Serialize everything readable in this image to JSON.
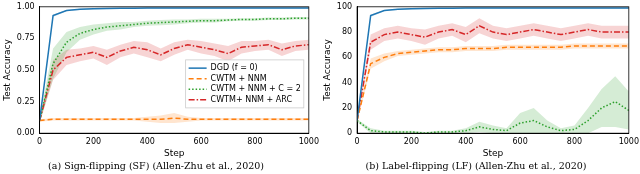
{
  "chart_data": [
    {
      "type": "line",
      "title": "(a) Sign-flipping (SF) (Allen-Zhu et al., 2020)",
      "x_label": "Step",
      "y_label": "Test Accuracy",
      "x": [
        0,
        50,
        100,
        150,
        200,
        250,
        300,
        350,
        400,
        450,
        500,
        550,
        600,
        650,
        700,
        750,
        800,
        850,
        900,
        950,
        1000
      ],
      "xlim": [
        0,
        1000
      ],
      "xticks": [
        0,
        200,
        400,
        600,
        800,
        1000
      ],
      "ylim": [
        0,
        1
      ],
      "yticks": [
        {
          "value": 0,
          "label": "0.00"
        },
        {
          "value": 0.25,
          "label": "0.25"
        },
        {
          "value": 0.5,
          "label": "0.50"
        },
        {
          "value": 0.75,
          "label": "0.75"
        },
        {
          "value": 1,
          "label": "1.00"
        }
      ],
      "grid": false,
      "legend": "center right",
      "series": [
        {
          "name": "DGD (f = 0)",
          "color": "#1f77b4",
          "line_style": "solid",
          "values": [
            0.1,
            0.93,
            0.97,
            0.98,
            0.985,
            0.987,
            0.988,
            0.989,
            0.99,
            0.99,
            0.99,
            0.99,
            0.99,
            0.99,
            0.99,
            0.99,
            0.99,
            0.99,
            0.99,
            0.99,
            0.99
          ],
          "std": [
            0.01,
            0.01,
            0.005,
            0.005,
            0.005,
            0.005,
            0.005,
            0.005,
            0.005,
            0.005,
            0.005,
            0.005,
            0.005,
            0.005,
            0.005,
            0.005,
            0.005,
            0.005,
            0.005,
            0.005,
            0.005
          ]
        },
        {
          "name": "CWTM + NNM",
          "color": "#ff7f0e",
          "line_style": "dashed",
          "values": [
            0.1,
            0.11,
            0.11,
            0.11,
            0.11,
            0.11,
            0.11,
            0.11,
            0.11,
            0.11,
            0.12,
            0.11,
            0.11,
            0.11,
            0.11,
            0.11,
            0.11,
            0.11,
            0.11,
            0.11,
            0.11
          ],
          "std": [
            0.01,
            0.01,
            0.01,
            0.01,
            0.01,
            0.01,
            0.01,
            0.01,
            0.02,
            0.03,
            0.04,
            0.02,
            0.01,
            0.01,
            0.01,
            0.01,
            0.01,
            0.01,
            0.01,
            0.01,
            0.01
          ]
        },
        {
          "name": "CWTM + NNM + C = 2",
          "color": "#2ca02c",
          "line_style": "dotted",
          "values": [
            0.1,
            0.55,
            0.72,
            0.79,
            0.82,
            0.84,
            0.85,
            0.86,
            0.87,
            0.875,
            0.88,
            0.885,
            0.89,
            0.89,
            0.895,
            0.9,
            0.9,
            0.905,
            0.905,
            0.91,
            0.91
          ],
          "std": [
            0.02,
            0.12,
            0.08,
            0.05,
            0.04,
            0.03,
            0.03,
            0.02,
            0.02,
            0.02,
            0.02,
            0.015,
            0.015,
            0.015,
            0.01,
            0.01,
            0.01,
            0.01,
            0.01,
            0.01,
            0.01
          ]
        },
        {
          "name": "CWTM+ NNM + ARC",
          "color": "#d62728",
          "line_style": "dashdot",
          "values": [
            0.1,
            0.5,
            0.6,
            0.62,
            0.64,
            0.6,
            0.65,
            0.68,
            0.66,
            0.62,
            0.67,
            0.7,
            0.68,
            0.66,
            0.63,
            0.68,
            0.69,
            0.7,
            0.66,
            0.69,
            0.7
          ],
          "std": [
            0.02,
            0.08,
            0.06,
            0.05,
            0.05,
            0.06,
            0.05,
            0.05,
            0.06,
            0.05,
            0.05,
            0.04,
            0.05,
            0.05,
            0.06,
            0.05,
            0.04,
            0.04,
            0.05,
            0.04,
            0.04
          ]
        }
      ]
    },
    {
      "type": "line",
      "title": "(b) Label-flipping (LF) (Allen-Zhu et al., 2020)",
      "x_label": "Step",
      "y_label": "Test Accuracy",
      "x": [
        0,
        50,
        100,
        150,
        200,
        250,
        300,
        350,
        400,
        450,
        500,
        550,
        600,
        650,
        700,
        750,
        800,
        850,
        900,
        950,
        1000
      ],
      "xlim": [
        0,
        1000
      ],
      "xticks": [
        0,
        200,
        400,
        600,
        800,
        1000
      ],
      "ylim": [
        0,
        100
      ],
      "yticks": [
        0,
        20,
        40,
        60,
        80,
        100
      ],
      "grid": false,
      "series": [
        {
          "name": "DGD (f = 0)",
          "color": "#1f77b4",
          "line_style": "solid",
          "values": [
            10,
            93,
            97,
            98,
            98.5,
            98.7,
            98.8,
            98.9,
            99,
            99,
            99,
            99,
            99,
            99,
            99,
            99,
            99,
            99,
            99,
            99,
            99
          ],
          "std": [
            1,
            1,
            0.5,
            0.5,
            0.5,
            0.5,
            0.5,
            0.5,
            0.5,
            0.5,
            0.5,
            0.5,
            0.5,
            0.5,
            0.5,
            0.5,
            0.5,
            0.5,
            0.5,
            0.5,
            0.5
          ]
        },
        {
          "name": "CWTM + NNM",
          "color": "#ff7f0e",
          "line_style": "dashed",
          "values": [
            10,
            55,
            60,
            63,
            64,
            65,
            66,
            66,
            67,
            67,
            67,
            68,
            68,
            68,
            68,
            68,
            69,
            69,
            69,
            69,
            69
          ],
          "std": [
            1,
            4,
            3,
            2,
            2,
            2,
            2,
            2,
            2,
            2,
            2,
            2,
            2,
            2,
            2,
            2,
            2,
            2,
            2,
            2,
            2
          ]
        },
        {
          "name": "CWTM + NNM + C = 2",
          "color": "#2ca02c",
          "line_style": "dotted",
          "values": [
            10,
            2,
            1,
            1,
            1,
            0,
            1,
            1,
            2,
            5,
            3,
            2,
            8,
            10,
            5,
            2,
            3,
            10,
            20,
            25,
            18
          ],
          "std": [
            1,
            2,
            1,
            1,
            1,
            1,
            1,
            1,
            2,
            4,
            3,
            2,
            8,
            10,
            5,
            2,
            3,
            10,
            15,
            20,
            15
          ]
        },
        {
          "name": "CWTM+ NNM + ARC",
          "color": "#d62728",
          "line_style": "dashdot",
          "values": [
            10,
            72,
            78,
            80,
            78,
            76,
            80,
            82,
            78,
            85,
            80,
            78,
            80,
            82,
            80,
            78,
            80,
            82,
            80,
            80,
            80
          ],
          "std": [
            1,
            6,
            5,
            5,
            5,
            6,
            5,
            5,
            6,
            6,
            5,
            5,
            5,
            5,
            5,
            5,
            5,
            5,
            5,
            5,
            5
          ]
        }
      ]
    }
  ]
}
